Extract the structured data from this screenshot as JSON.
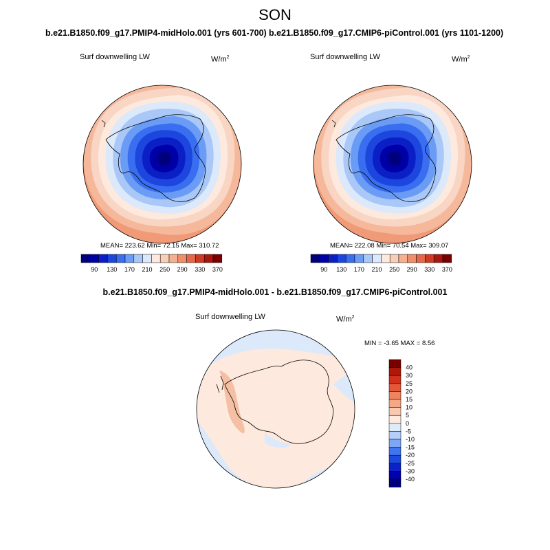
{
  "figure": {
    "season": "SON",
    "panels": [
      {
        "title": "b.e21.B1850.f09_g17.PMIP4-midHolo.001 (yrs 601-700)",
        "variable": "Surf downwelling LW",
        "units_base": "W/m",
        "units_exp": "2",
        "stats": "MEAN= 223.62   Min=  72.15   Max= 310.72"
      },
      {
        "title": "b.e21.B1850.f09_g17.CMIP6-piControl.001 (yrs 1101-1200)",
        "variable": "Surf downwelling LW",
        "units_base": "W/m",
        "units_exp": "2",
        "stats": "MEAN= 222.08   Min=  70.54   Max= 309.07"
      }
    ],
    "diff": {
      "title": "b.e21.B1850.f09_g17.PMIP4-midHolo.001 - b.e21.B1850.f09_g17.CMIP6-piControl.001",
      "variable": "Surf downwelling LW",
      "units_base": "W/m",
      "units_exp": "2",
      "stats": "MIN =  -3.65 MAX =   8.56"
    }
  },
  "colorbars": {
    "abs": {
      "colors": [
        "#00007f",
        "#0000a8",
        "#0a1fc6",
        "#1c46de",
        "#3a6ef0",
        "#6b9cf5",
        "#a9c8f7",
        "#dbe9fb",
        "#fde9dd",
        "#f9ceb6",
        "#f4b091",
        "#ef8e6b",
        "#e56649",
        "#cf3a24",
        "#a8170c",
        "#7a0000"
      ],
      "tick_labels": [
        "90",
        "130",
        "170",
        "210",
        "250",
        "290",
        "330",
        "370"
      ]
    },
    "diff": {
      "colors": [
        "#00007f",
        "#0000b0",
        "#0a22c8",
        "#1c4ae0",
        "#3f75f0",
        "#7ea6f6",
        "#b5d0f8",
        "#dcecfb",
        "#fde9dd",
        "#f9c9af",
        "#f4a886",
        "#ef8460",
        "#e5563a",
        "#d2301c",
        "#ad1809",
        "#7a0000"
      ],
      "tick_labels": [
        "40",
        "30",
        "25",
        "20",
        "15",
        "10",
        "5",
        "0",
        "-5",
        "-10",
        "-15",
        "-20",
        "-25",
        "-30",
        "-40"
      ]
    }
  },
  "map_style": {
    "abs_band_colors": [
      "#f09a78",
      "#f5b89b",
      "#f9d5c3",
      "#fde9dd",
      "#dbe9fb",
      "#a9c8f7",
      "#6b9cf5",
      "#3a6ef0",
      "#1c46de",
      "#0a1fc6",
      "#0000a8",
      "#00007f"
    ],
    "diff_colors": {
      "base": "#fde9dd",
      "ocean_patch": "#dbe9fb",
      "peninsula": "#f4bfa3"
    },
    "coast_color": "#000000"
  }
}
